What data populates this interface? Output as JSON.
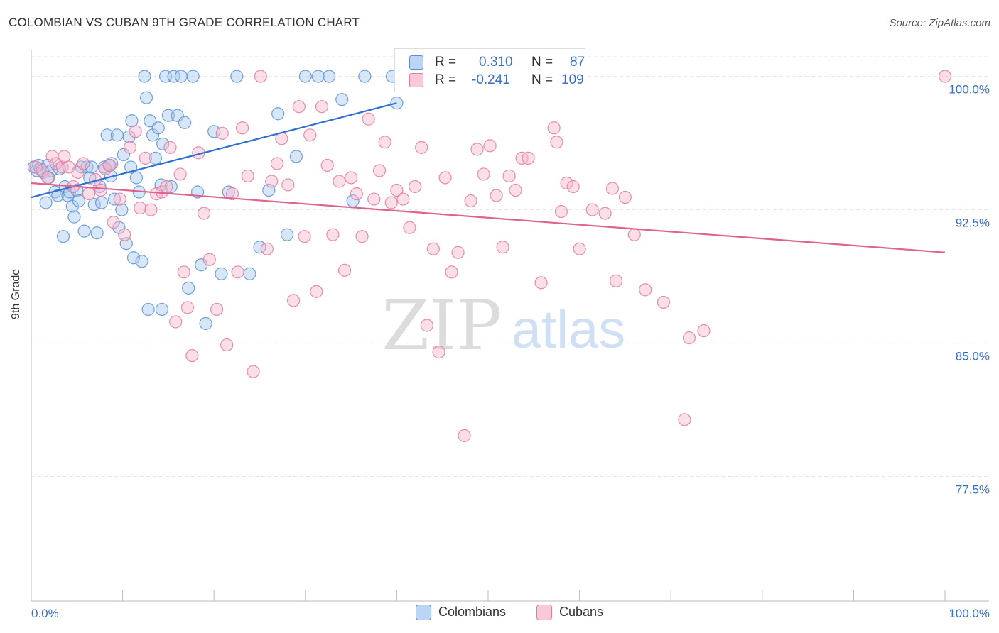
{
  "title": "COLOMBIAN VS CUBAN 9TH GRADE CORRELATION CHART",
  "source": "Source: ZipAtlas.com",
  "watermark": {
    "zip": "ZIP",
    "atlas": "atlas"
  },
  "legend": {
    "rows": [
      {
        "r_label": "R =",
        "r_value": "0.310",
        "n_label": "N =",
        "n_value": "87"
      },
      {
        "r_label": "R =",
        "r_value": "-0.241",
        "n_label": "N =",
        "n_value": "109"
      }
    ]
  },
  "colors": {
    "blue_fill": "#a9c9f0",
    "blue_stroke": "#5b8fd6",
    "blue_line": "#2f6fcf",
    "pink_fill": "#f6b8cc",
    "pink_stroke": "#e5799d",
    "pink_line": "#e0628f",
    "tick_text": "#3a6fc9",
    "grid": "#e4e4e4"
  },
  "chart_data": {
    "type": "scatter",
    "title": "COLOMBIAN VS CUBAN 9TH GRADE CORRELATION CHART",
    "xlabel": "",
    "ylabel": "9th Grade",
    "xlim": [
      0,
      100
    ],
    "ylim": [
      70.5,
      101.5
    ],
    "x_tick_labels": [
      "0.0%",
      "100.0%"
    ],
    "y_ticks": [
      77.5,
      85.0,
      92.5,
      100.0
    ],
    "y_tick_labels": [
      "77.5%",
      "85.0%",
      "92.5%",
      "100.0%"
    ],
    "grid": "horizontal dashed",
    "legend_position": "bottom",
    "series": [
      {
        "name": "Colombians",
        "color": "#5b8fd6",
        "R": 0.31,
        "N": 87,
        "trend": {
          "x": [
            0,
            40
          ],
          "y": [
            93.2,
            98.5
          ]
        },
        "points": [
          [
            0.3,
            94.9
          ],
          [
            0.6,
            94.7
          ],
          [
            0.8,
            95.0
          ],
          [
            1.0,
            94.8
          ],
          [
            1.3,
            94.6
          ],
          [
            1.6,
            92.9
          ],
          [
            1.8,
            95.0
          ],
          [
            2.2,
            94.7
          ],
          [
            2.6,
            93.5
          ],
          [
            2.9,
            93.3
          ],
          [
            3.1,
            94.8
          ],
          [
            3.5,
            91.0
          ],
          [
            3.7,
            93.8
          ],
          [
            4.0,
            93.3
          ],
          [
            4.2,
            93.5
          ],
          [
            4.5,
            92.7
          ],
          [
            4.7,
            92.1
          ],
          [
            5.0,
            93.6
          ],
          [
            5.2,
            93.0
          ],
          [
            5.5,
            94.9
          ],
          [
            5.8,
            91.3
          ],
          [
            6.1,
            94.9
          ],
          [
            6.4,
            94.3
          ],
          [
            6.6,
            94.9
          ],
          [
            6.9,
            92.8
          ],
          [
            7.2,
            91.2
          ],
          [
            7.5,
            93.8
          ],
          [
            7.7,
            92.9
          ],
          [
            8.0,
            94.9
          ],
          [
            8.3,
            96.7
          ],
          [
            8.5,
            95.0
          ],
          [
            8.8,
            95.1
          ],
          [
            9.1,
            93.1
          ],
          [
            9.4,
            96.7
          ],
          [
            9.6,
            91.5
          ],
          [
            9.9,
            92.5
          ],
          [
            10.1,
            95.6
          ],
          [
            10.4,
            90.6
          ],
          [
            10.7,
            96.6
          ],
          [
            11.0,
            97.5
          ],
          [
            11.2,
            89.8
          ],
          [
            11.5,
            94.3
          ],
          [
            11.8,
            93.5
          ],
          [
            12.1,
            89.6
          ],
          [
            12.4,
            100.0
          ],
          [
            12.6,
            98.8
          ],
          [
            13.0,
            97.5
          ],
          [
            13.3,
            96.7
          ],
          [
            13.6,
            95.4
          ],
          [
            13.9,
            97.1
          ],
          [
            14.2,
            93.9
          ],
          [
            14.4,
            96.2
          ],
          [
            14.7,
            100.0
          ],
          [
            15.0,
            97.8
          ],
          [
            15.3,
            93.8
          ],
          [
            15.6,
            100.0
          ],
          [
            16.0,
            97.8
          ],
          [
            16.4,
            100.0
          ],
          [
            16.8,
            97.4
          ],
          [
            17.2,
            88.1
          ],
          [
            17.7,
            100.0
          ],
          [
            18.2,
            93.5
          ],
          [
            18.6,
            89.4
          ],
          [
            19.1,
            86.1
          ],
          [
            20.0,
            96.9
          ],
          [
            20.8,
            88.9
          ],
          [
            21.6,
            93.5
          ],
          [
            22.5,
            100.0
          ],
          [
            23.9,
            88.9
          ],
          [
            25.0,
            90.4
          ],
          [
            26.0,
            93.6
          ],
          [
            27.0,
            97.9
          ],
          [
            28.0,
            91.1
          ],
          [
            29.0,
            95.5
          ],
          [
            30.0,
            100.0
          ],
          [
            31.4,
            100.0
          ],
          [
            32.6,
            100.0
          ],
          [
            34.0,
            98.7
          ],
          [
            35.2,
            93.0
          ],
          [
            36.5,
            100.0
          ],
          [
            39.5,
            100.0
          ],
          [
            40.0,
            98.5
          ],
          [
            12.8,
            86.9
          ],
          [
            14.3,
            86.9
          ],
          [
            10.9,
            94.9
          ],
          [
            8.7,
            94.4
          ],
          [
            1.9,
            94.3
          ]
        ]
      },
      {
        "name": "Cubans",
        "color": "#e5799d",
        "R": -0.241,
        "N": 109,
        "trend": {
          "x": [
            0,
            100
          ],
          "y": [
            94.0,
            90.1
          ]
        },
        "points": [
          [
            0.5,
            94.9
          ],
          [
            1.2,
            94.7
          ],
          [
            1.8,
            94.3
          ],
          [
            2.3,
            95.5
          ],
          [
            2.7,
            95.1
          ],
          [
            3.4,
            94.9
          ],
          [
            3.6,
            95.5
          ],
          [
            4.1,
            94.9
          ],
          [
            4.6,
            93.8
          ],
          [
            5.1,
            94.6
          ],
          [
            5.7,
            95.1
          ],
          [
            6.3,
            93.4
          ],
          [
            7.0,
            94.2
          ],
          [
            7.6,
            93.6
          ],
          [
            8.1,
            94.8
          ],
          [
            8.6,
            95.0
          ],
          [
            9.0,
            91.8
          ],
          [
            9.7,
            93.1
          ],
          [
            10.2,
            91.1
          ],
          [
            10.8,
            96.0
          ],
          [
            11.4,
            96.9
          ],
          [
            11.9,
            92.6
          ],
          [
            12.5,
            95.4
          ],
          [
            13.1,
            92.5
          ],
          [
            13.7,
            93.4
          ],
          [
            14.3,
            93.5
          ],
          [
            14.8,
            93.8
          ],
          [
            15.2,
            96.0
          ],
          [
            15.8,
            86.2
          ],
          [
            16.3,
            94.5
          ],
          [
            16.7,
            89.0
          ],
          [
            17.1,
            87.0
          ],
          [
            17.6,
            84.3
          ],
          [
            18.3,
            95.7
          ],
          [
            18.9,
            92.3
          ],
          [
            19.5,
            89.7
          ],
          [
            20.3,
            86.9
          ],
          [
            20.9,
            96.8
          ],
          [
            21.4,
            84.9
          ],
          [
            22.0,
            93.4
          ],
          [
            22.6,
            89.0
          ],
          [
            23.1,
            97.1
          ],
          [
            23.7,
            94.4
          ],
          [
            24.3,
            83.4
          ],
          [
            25.1,
            100.0
          ],
          [
            25.8,
            90.3
          ],
          [
            26.3,
            94.1
          ],
          [
            26.9,
            95.1
          ],
          [
            27.4,
            96.5
          ],
          [
            28.1,
            93.9
          ],
          [
            28.7,
            87.4
          ],
          [
            29.3,
            98.3
          ],
          [
            29.9,
            91.0
          ],
          [
            30.5,
            96.7
          ],
          [
            31.2,
            87.9
          ],
          [
            31.8,
            98.3
          ],
          [
            32.4,
            95.0
          ],
          [
            33.0,
            91.1
          ],
          [
            33.7,
            94.1
          ],
          [
            34.3,
            89.1
          ],
          [
            35.0,
            94.3
          ],
          [
            35.6,
            93.4
          ],
          [
            36.2,
            91.0
          ],
          [
            36.9,
            97.6
          ],
          [
            37.5,
            93.1
          ],
          [
            38.1,
            94.7
          ],
          [
            38.7,
            96.3
          ],
          [
            39.4,
            92.9
          ],
          [
            40.0,
            93.6
          ],
          [
            40.7,
            93.1
          ],
          [
            41.4,
            91.5
          ],
          [
            42.0,
            93.8
          ],
          [
            42.7,
            96.0
          ],
          [
            43.3,
            86.0
          ],
          [
            44.0,
            90.3
          ],
          [
            44.6,
            84.5
          ],
          [
            45.3,
            94.3
          ],
          [
            46.0,
            89.0
          ],
          [
            46.7,
            90.1
          ],
          [
            47.4,
            79.8
          ],
          [
            48.1,
            93.0
          ],
          [
            48.8,
            95.9
          ],
          [
            49.5,
            94.5
          ],
          [
            50.2,
            96.1
          ],
          [
            50.9,
            93.3
          ],
          [
            51.6,
            90.4
          ],
          [
            52.3,
            94.4
          ],
          [
            53.0,
            93.6
          ],
          [
            53.7,
            95.4
          ],
          [
            54.4,
            95.4
          ],
          [
            55.8,
            88.4
          ],
          [
            57.2,
            97.1
          ],
          [
            57.5,
            96.3
          ],
          [
            58.0,
            92.4
          ],
          [
            58.6,
            94.0
          ],
          [
            59.3,
            93.8
          ],
          [
            60.0,
            90.3
          ],
          [
            61.4,
            92.5
          ],
          [
            62.8,
            92.3
          ],
          [
            63.6,
            93.7
          ],
          [
            64.0,
            88.5
          ],
          [
            65.0,
            93.2
          ],
          [
            66.0,
            91.1
          ],
          [
            67.2,
            88.0
          ],
          [
            69.2,
            87.3
          ],
          [
            71.5,
            80.7
          ],
          [
            72.0,
            85.3
          ],
          [
            73.6,
            85.7
          ],
          [
            100.0,
            100.0
          ]
        ]
      }
    ]
  },
  "bottom_legend": [
    "Colombians",
    "Cubans"
  ]
}
